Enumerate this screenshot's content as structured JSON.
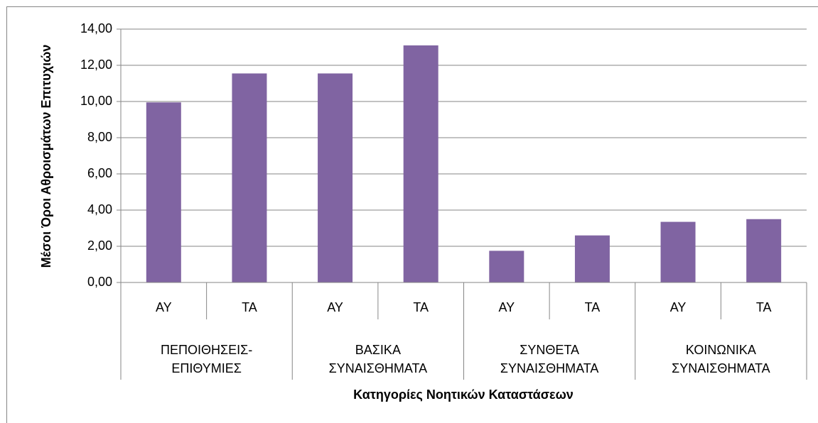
{
  "chart_data": {
    "type": "bar",
    "y_label": "Μέσοι Όροι Αθροισμάτων Επιτυχιών",
    "x_label": "Κατηγορίες Νοητικών Καταστάσεων",
    "categories": [
      "ΑΥ",
      "ΤΑ",
      "ΑΥ",
      "ΤΑ",
      "ΑΥ",
      "ΤΑ",
      "ΑΥ",
      "ΤΑ"
    ],
    "groups": [
      {
        "lines": [
          "ΠΕΠΟΙΘΗΣΕΙΣ-",
          "ΕΠΙΘΥΜΙΕΣ"
        ]
      },
      {
        "lines": [
          "ΒΑΣΙΚΑ",
          "ΣΥΝΑΙΣΘΗΜΑΤΑ"
        ]
      },
      {
        "lines": [
          "ΣΥΝΘΕΤΑ",
          "ΣΥΝΑΙΣΘΗΜΑΤΑ"
        ]
      },
      {
        "lines": [
          "ΚΟΙΝΩΝΙΚΑ",
          "ΣΥΝΑΙΣΘΗΜΑΤΑ"
        ]
      }
    ],
    "values": [
      9.95,
      11.55,
      11.55,
      13.1,
      1.75,
      2.6,
      3.35,
      3.5
    ],
    "color": "#8064a2",
    "ylim": [
      0,
      14
    ],
    "yticks": [
      {
        "value": 0,
        "label": "0,00"
      },
      {
        "value": 2,
        "label": "2,00"
      },
      {
        "value": 4,
        "label": "4,00"
      },
      {
        "value": 6,
        "label": "6,00"
      },
      {
        "value": 8,
        "label": "8,00"
      },
      {
        "value": 10,
        "label": "10,00"
      },
      {
        "value": 12,
        "label": "12,00"
      },
      {
        "value": 14,
        "label": "14,00"
      }
    ],
    "grid": true
  }
}
